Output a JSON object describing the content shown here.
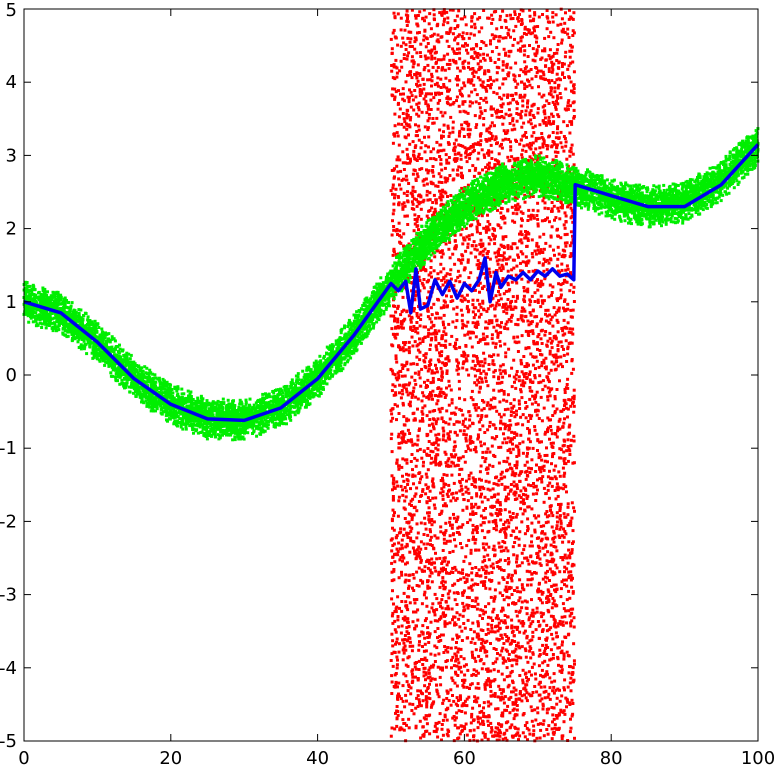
{
  "chart_data": {
    "type": "scatter",
    "title": "",
    "xlabel": "",
    "ylabel": "",
    "xlim": [
      0,
      100
    ],
    "ylim": [
      -5,
      5
    ],
    "grid": false,
    "xticks": [
      0,
      20,
      40,
      60,
      80,
      100
    ],
    "yticks": [
      -5,
      -4,
      -3,
      -2,
      -1,
      0,
      1,
      2,
      3,
      4,
      5
    ],
    "xtick_labels": [
      "0",
      "20",
      "40",
      "60",
      "80",
      "100"
    ],
    "ytick_labels": [
      "-5",
      "-4",
      "-3",
      "-2",
      "-1",
      "0",
      "1",
      "2",
      "3",
      "4",
      "5"
    ],
    "series": [
      {
        "kind": "uniform-noise-points",
        "color": "#ff0000",
        "x_range": [
          50,
          75
        ],
        "y_range": [
          -5,
          5
        ],
        "approx_count": 6000
      },
      {
        "kind": "noisy-curve-points",
        "color": "#00ee00",
        "band_halfwidth": 0.28,
        "x": [
          0,
          5,
          10,
          15,
          20,
          25,
          30,
          35,
          40,
          45,
          50,
          55,
          60,
          65,
          70,
          75,
          80,
          85,
          90,
          95,
          100
        ],
        "y": [
          1.0,
          0.85,
          0.45,
          -0.05,
          -0.4,
          -0.6,
          -0.62,
          -0.45,
          -0.05,
          0.55,
          1.25,
          1.85,
          2.3,
          2.6,
          2.72,
          2.6,
          2.4,
          2.3,
          2.35,
          2.65,
          3.15
        ]
      },
      {
        "kind": "line",
        "color": "#0000ee",
        "x": [
          0,
          5,
          10,
          15,
          20,
          25,
          30,
          35,
          40,
          45,
          50,
          51,
          52,
          52.7,
          53.4,
          54,
          55,
          56,
          57,
          58,
          59,
          60,
          61,
          62,
          62.8,
          63.5,
          64.3,
          65,
          66,
          67,
          68,
          69,
          70,
          71,
          72,
          73,
          74,
          74.9,
          75.1,
          80,
          85,
          90,
          95,
          100
        ],
        "y": [
          1.0,
          0.85,
          0.45,
          -0.05,
          -0.4,
          -0.6,
          -0.62,
          -0.45,
          -0.05,
          0.55,
          1.25,
          1.15,
          1.28,
          0.85,
          1.45,
          0.9,
          0.95,
          1.3,
          1.1,
          1.28,
          1.05,
          1.25,
          1.15,
          1.3,
          1.6,
          1.0,
          1.4,
          1.2,
          1.35,
          1.3,
          1.4,
          1.3,
          1.42,
          1.35,
          1.45,
          1.35,
          1.38,
          1.3,
          2.6,
          2.45,
          2.3,
          2.3,
          2.6,
          3.15
        ]
      }
    ]
  }
}
